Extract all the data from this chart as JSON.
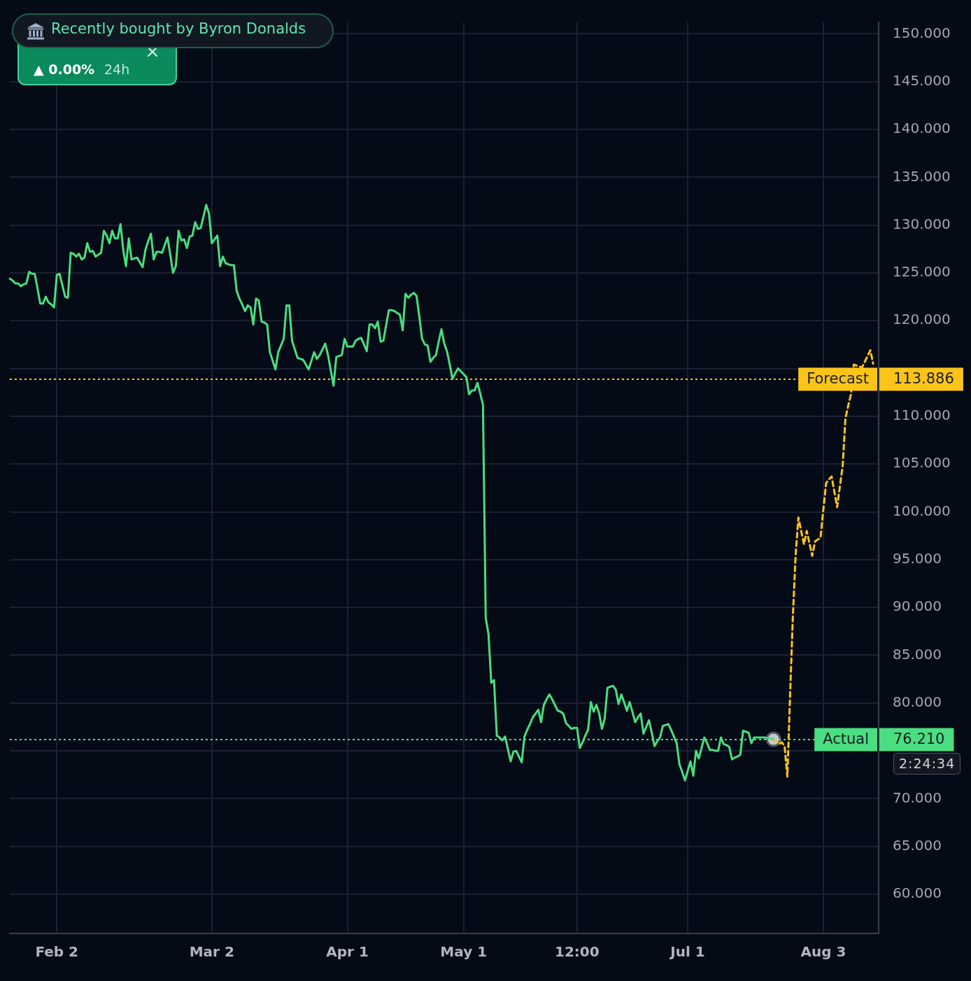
{
  "chart_data": {
    "type": "line",
    "annotations": [
      "Recently bought by Byron Donalds",
      "▲ 0.00%",
      "24h",
      "113.886",
      "76.210",
      "2:24:34"
    ],
    "categories": [
      null,
      null,
      null,
      null,
      null,
      null,
      null,
      null,
      null,
      null,
      null,
      null,
      null,
      null,
      null,
      null,
      null,
      "Feb 2",
      null,
      null,
      null,
      null,
      null,
      null,
      null,
      null,
      null,
      null,
      null,
      null,
      null,
      null,
      null,
      null,
      null,
      null,
      null,
      null,
      null,
      null,
      null,
      null,
      null,
      null,
      null,
      null,
      null,
      null,
      null,
      null,
      null,
      null,
      null,
      null,
      null,
      null,
      null,
      null,
      null,
      null,
      null,
      null,
      null,
      null,
      null,
      null,
      null,
      null,
      null,
      null,
      null,
      null,
      null,
      "Mar 2",
      null,
      null,
      null,
      null,
      null,
      null,
      null,
      null,
      null,
      null,
      null,
      null,
      null,
      null,
      null,
      null,
      null,
      null,
      null,
      null,
      null,
      null,
      null,
      null,
      null,
      null,
      null,
      null,
      null,
      null,
      null,
      null,
      null,
      null,
      null,
      null,
      null,
      null,
      null,
      null,
      null,
      null,
      null,
      null,
      null,
      null,
      null,
      null,
      "Apr 1",
      null,
      null,
      null,
      null,
      null,
      null,
      null,
      null,
      null,
      null,
      null,
      null,
      null,
      null,
      null,
      null,
      null,
      null,
      null,
      null,
      null,
      null,
      null,
      null,
      null,
      null,
      null,
      null,
      null,
      null,
      null,
      null,
      null,
      null,
      null,
      null,
      null,
      null,
      null,
      null,
      null,
      "May 1",
      null,
      null,
      null,
      null,
      null,
      null,
      null,
      null,
      null,
      null,
      null,
      null,
      null,
      null,
      null,
      null,
      null,
      null,
      null,
      null,
      null,
      null,
      null,
      null,
      null,
      null,
      null,
      null,
      null,
      null,
      null,
      null,
      null,
      null,
      null,
      null,
      null,
      null,
      null,
      null,
      "12:00",
      null,
      null,
      null,
      null,
      null,
      null,
      null,
      null,
      null,
      null,
      null,
      null,
      null,
      null,
      null,
      null,
      null,
      null,
      null,
      null,
      null,
      null,
      null,
      null,
      null,
      null,
      null,
      null,
      null,
      null,
      null,
      null,
      null,
      null,
      null,
      null,
      null,
      null,
      null,
      "Jul 1",
      null,
      null,
      null,
      null,
      null,
      null,
      null,
      null,
      null,
      null,
      null,
      null,
      null,
      null,
      null,
      null,
      null,
      null,
      null,
      null,
      null,
      null,
      null,
      null,
      null,
      null,
      null,
      null,
      null,
      null,
      null,
      null,
      null,
      null,
      null,
      null,
      null,
      null,
      null,
      null,
      null,
      null,
      null,
      null,
      null,
      null,
      null,
      null,
      "Aug 3",
      null,
      null,
      null,
      null,
      null,
      null,
      null,
      null,
      null,
      null,
      null,
      null,
      null,
      null,
      null,
      null,
      null,
      null,
      null,
      null
    ],
    "ylim": [
      55.9,
      151.2
    ],
    "yticks": [
      {
        "value": 60,
        "label": "60.000"
      },
      {
        "value": 65,
        "label": "65.000"
      },
      {
        "value": 70,
        "label": "70.000"
      },
      {
        "value": 75,
        "label": null
      },
      {
        "value": 80,
        "label": "80.000"
      },
      {
        "value": 85,
        "label": "85.000"
      },
      {
        "value": 90,
        "label": "90.000"
      },
      {
        "value": 95,
        "label": "95.000"
      },
      {
        "value": 100,
        "label": "100.000"
      },
      {
        "value": 105,
        "label": "105.000"
      },
      {
        "value": 110,
        "label": "110.000"
      },
      {
        "value": 115,
        "label": null
      },
      {
        "value": 120,
        "label": "120.000"
      },
      {
        "value": 125,
        "label": "125.000"
      },
      {
        "value": 130,
        "label": "130.000"
      },
      {
        "value": 135,
        "label": "135.000"
      },
      {
        "value": 140,
        "label": "140.000"
      },
      {
        "value": 145,
        "label": "145.000"
      },
      {
        "value": 150,
        "label": "150.000"
      }
    ],
    "grid": true,
    "ref_lines": [
      {
        "axis": "y",
        "value": 113.886,
        "label": "Forecast",
        "color": "#fcc419",
        "line_style": "dotted"
      },
      {
        "axis": "y",
        "value": 76.21,
        "label": "Actual",
        "color": "#4ade80",
        "line_style": "dotted"
      }
    ],
    "series": [
      {
        "color": "#4ade80",
        "values": [
          124.4,
          124.2,
          123.9,
          123.9,
          123.6,
          123.8,
          123.9,
          125.1,
          124.9,
          124.9,
          123.4,
          121.8,
          121.8,
          122.5,
          121.9,
          121.7,
          121.4,
          124.8,
          124.9,
          123.7,
          122.5,
          122.4,
          127.1,
          127.0,
          126.7,
          127.0,
          126.4,
          126.6,
          128.1,
          127.2,
          127.3,
          126.7,
          126.9,
          127.1,
          129.4,
          128.9,
          128.1,
          129.4,
          128.6,
          128.6,
          130.1,
          127.4,
          125.7,
          128.6,
          126.4,
          126.5,
          126.6,
          126.1,
          125.6,
          127.4,
          128.3,
          129.1,
          126.4,
          127.2,
          127.2,
          127.1,
          127.9,
          128.7,
          126.9,
          125.0,
          125.7,
          129.4,
          128.4,
          128.5,
          127.6,
          128.8,
          128.9,
          130.3,
          129.6,
          129.7,
          130.9,
          132.1,
          131.2,
          128.1,
          128.5,
          128.9,
          125.7,
          126.7,
          126.0,
          125.9,
          125.8,
          125.8,
          123.1,
          122.3,
          121.7,
          121.0,
          121.6,
          121.4,
          119.6,
          122.3,
          122.1,
          119.9,
          119.8,
          119.6,
          116.7,
          115.8,
          114.9,
          116.7,
          117.4,
          118.1,
          121.6,
          121.6,
          117.9,
          117.0,
          116.1,
          116.0,
          115.9,
          115.4,
          114.9,
          115.8,
          116.7,
          116.0,
          116.4,
          117.0,
          117.6,
          116.4,
          114.8,
          113.2,
          116.2,
          116.3,
          116.4,
          118.1,
          117.3,
          117.3,
          117.3,
          117.9,
          118.1,
          118.2,
          117.5,
          116.8,
          119.6,
          119.6,
          119.2,
          119.9,
          117.8,
          117.9,
          119.5,
          121.1,
          121.1,
          121.0,
          120.8,
          120.6,
          119.0,
          122.8,
          122.4,
          122.7,
          122.9,
          122.6,
          120.4,
          118.1,
          117.5,
          117.4,
          115.7,
          116.1,
          116.4,
          117.8,
          119.1,
          117.6,
          116.8,
          115.4,
          113.9,
          114.5,
          115.0,
          114.7,
          114.4,
          114.1,
          112.3,
          112.7,
          112.7,
          113.5,
          112.4,
          111.2,
          88.9,
          87.2,
          82.1,
          82.4,
          76.6,
          76.4,
          76.1,
          76.5,
          75.2,
          73.9,
          74.9,
          75.0,
          74.4,
          73.8,
          76.5,
          77.2,
          77.8,
          78.5,
          78.9,
          79.3,
          78.0,
          79.8,
          80.4,
          80.9,
          80.4,
          79.8,
          79.2,
          79.1,
          78.9,
          77.9,
          77.6,
          77.3,
          77.4,
          77.4,
          75.3,
          75.9,
          76.6,
          77.2,
          80.1,
          79.1,
          79.8,
          78.9,
          77.3,
          78.4,
          81.6,
          81.7,
          81.8,
          81.4,
          79.9,
          80.9,
          80.1,
          79.2,
          80.1,
          79.1,
          78.0,
          78.5,
          78.9,
          76.8,
          77.5,
          78.2,
          76.9,
          75.5,
          76.0,
          76.4,
          77.6,
          77.7,
          77.8,
          77.2,
          76.5,
          75.8,
          73.6,
          72.8,
          71.9,
          72.9,
          73.9,
          72.4,
          75.0,
          74.2,
          75.3,
          76.4,
          75.8,
          75.1,
          75.1,
          75.0,
          75.0,
          76.4,
          75.7,
          75.6,
          75.4,
          74.1,
          74.3,
          74.4,
          74.6,
          77.1,
          77.0,
          76.9,
          75.8,
          76.4,
          76.4,
          76.4,
          76.4,
          76.4,
          76.3,
          76.3,
          76.21,
          null,
          null,
          null,
          null,
          null,
          null,
          null,
          null,
          null,
          null,
          null,
          null,
          null,
          null,
          null,
          null,
          null,
          null,
          null,
          null,
          null,
          null,
          null,
          null,
          null,
          null,
          null,
          null,
          null,
          null,
          null,
          null,
          null,
          null,
          null,
          null,
          null,
          null
        ]
      },
      {
        "color": "#fcc419",
        "line_style": "dashed",
        "values": [
          null,
          null,
          null,
          null,
          null,
          null,
          null,
          null,
          null,
          null,
          null,
          null,
          null,
          null,
          null,
          null,
          null,
          null,
          null,
          null,
          null,
          null,
          null,
          null,
          null,
          null,
          null,
          null,
          null,
          null,
          null,
          null,
          null,
          null,
          null,
          null,
          null,
          null,
          null,
          null,
          null,
          null,
          null,
          null,
          null,
          null,
          null,
          null,
          null,
          null,
          null,
          null,
          null,
          null,
          null,
          null,
          null,
          null,
          null,
          null,
          null,
          null,
          null,
          null,
          null,
          null,
          null,
          null,
          null,
          null,
          null,
          null,
          null,
          null,
          null,
          null,
          null,
          null,
          null,
          null,
          null,
          null,
          null,
          null,
          null,
          null,
          null,
          null,
          null,
          null,
          null,
          null,
          null,
          null,
          null,
          null,
          null,
          null,
          null,
          null,
          null,
          null,
          null,
          null,
          null,
          null,
          null,
          null,
          null,
          null,
          null,
          null,
          null,
          null,
          null,
          null,
          null,
          null,
          null,
          null,
          null,
          null,
          null,
          null,
          null,
          null,
          null,
          null,
          null,
          null,
          null,
          null,
          null,
          null,
          null,
          null,
          null,
          null,
          null,
          null,
          null,
          null,
          null,
          null,
          null,
          null,
          null,
          null,
          null,
          null,
          null,
          null,
          null,
          null,
          null,
          null,
          null,
          null,
          null,
          null,
          null,
          null,
          null,
          null,
          null,
          null,
          null,
          null,
          null,
          null,
          null,
          null,
          null,
          null,
          null,
          null,
          null,
          null,
          null,
          null,
          null,
          null,
          null,
          null,
          null,
          null,
          null,
          null,
          null,
          null,
          null,
          null,
          null,
          null,
          null,
          null,
          null,
          null,
          null,
          null,
          null,
          null,
          null,
          null,
          null,
          null,
          null,
          null,
          null,
          null,
          null,
          null,
          null,
          null,
          null,
          null,
          null,
          null,
          null,
          null,
          null,
          null,
          null,
          null,
          null,
          null,
          null,
          null,
          null,
          null,
          null,
          null,
          null,
          null,
          null,
          null,
          null,
          null,
          null,
          null,
          null,
          null,
          null,
          null,
          null,
          null,
          null,
          null,
          null,
          null,
          null,
          null,
          null,
          null,
          null,
          null,
          null,
          null,
          null,
          null,
          null,
          null,
          null,
          null,
          null,
          null,
          null,
          null,
          null,
          null,
          null,
          null,
          null,
          null,
          null,
          null,
          76.21,
          76.0,
          75.7,
          75.9,
          75.5,
          72.3,
          80.9,
          89.1,
          95.5,
          99.4,
          98.0,
          96.6,
          98.0,
          96.7,
          95.4,
          96.9,
          97.1,
          97.3,
          100.2,
          103.0,
          103.4,
          103.7,
          102.1,
          100.5,
          102.7,
          104.8,
          109.8,
          111.1,
          112.3,
          115.4,
          115.3,
          115.2,
          115.1,
          115.7,
          116.3,
          116.9,
          115.5,
          null,
          null
        ]
      },
      {
        "type": "scatter",
        "color": "#c5c8d0",
        "values": [
          null,
          null,
          null,
          null,
          null,
          null,
          null,
          null,
          null,
          null,
          null,
          null,
          null,
          null,
          null,
          null,
          null,
          null,
          null,
          null,
          null,
          null,
          null,
          null,
          null,
          null,
          null,
          null,
          null,
          null,
          null,
          null,
          null,
          null,
          null,
          null,
          null,
          null,
          null,
          null,
          null,
          null,
          null,
          null,
          null,
          null,
          null,
          null,
          null,
          null,
          null,
          null,
          null,
          null,
          null,
          null,
          null,
          null,
          null,
          null,
          null,
          null,
          null,
          null,
          null,
          null,
          null,
          null,
          null,
          null,
          null,
          null,
          null,
          null,
          null,
          null,
          null,
          null,
          null,
          null,
          null,
          null,
          null,
          null,
          null,
          null,
          null,
          null,
          null,
          null,
          null,
          null,
          null,
          null,
          null,
          null,
          null,
          null,
          null,
          null,
          null,
          null,
          null,
          null,
          null,
          null,
          null,
          null,
          null,
          null,
          null,
          null,
          null,
          null,
          null,
          null,
          null,
          null,
          null,
          null,
          null,
          null,
          null,
          null,
          null,
          null,
          null,
          null,
          null,
          null,
          null,
          null,
          null,
          null,
          null,
          null,
          null,
          null,
          null,
          null,
          null,
          null,
          null,
          null,
          null,
          null,
          null,
          null,
          null,
          null,
          null,
          null,
          null,
          null,
          null,
          null,
          null,
          null,
          null,
          null,
          null,
          null,
          null,
          null,
          null,
          null,
          null,
          null,
          null,
          null,
          null,
          null,
          null,
          null,
          null,
          null,
          null,
          null,
          null,
          null,
          null,
          null,
          null,
          null,
          null,
          null,
          null,
          null,
          null,
          null,
          null,
          null,
          null,
          null,
          null,
          null,
          null,
          null,
          null,
          null,
          null,
          null,
          null,
          null,
          null,
          null,
          null,
          null,
          null,
          null,
          null,
          null,
          null,
          null,
          null,
          null,
          null,
          null,
          null,
          null,
          null,
          null,
          null,
          null,
          null,
          null,
          null,
          null,
          null,
          null,
          null,
          null,
          null,
          null,
          null,
          null,
          null,
          null,
          null,
          null,
          null,
          null,
          null,
          null,
          null,
          null,
          null,
          null,
          null,
          null,
          null,
          null,
          null,
          null,
          null,
          null,
          null,
          null,
          null,
          null,
          null,
          null,
          null,
          null,
          null,
          null,
          null,
          null,
          null,
          null,
          null,
          null,
          null,
          null,
          null,
          null,
          76.21,
          null,
          null,
          null,
          null,
          null,
          null,
          null,
          null,
          null,
          null,
          null,
          null,
          null,
          null,
          null,
          null,
          null,
          null,
          null,
          null,
          null,
          null,
          null,
          null,
          null,
          null,
          null,
          null,
          null,
          null,
          null,
          null,
          null,
          null,
          null,
          null,
          null,
          null
        ]
      }
    ]
  }
}
